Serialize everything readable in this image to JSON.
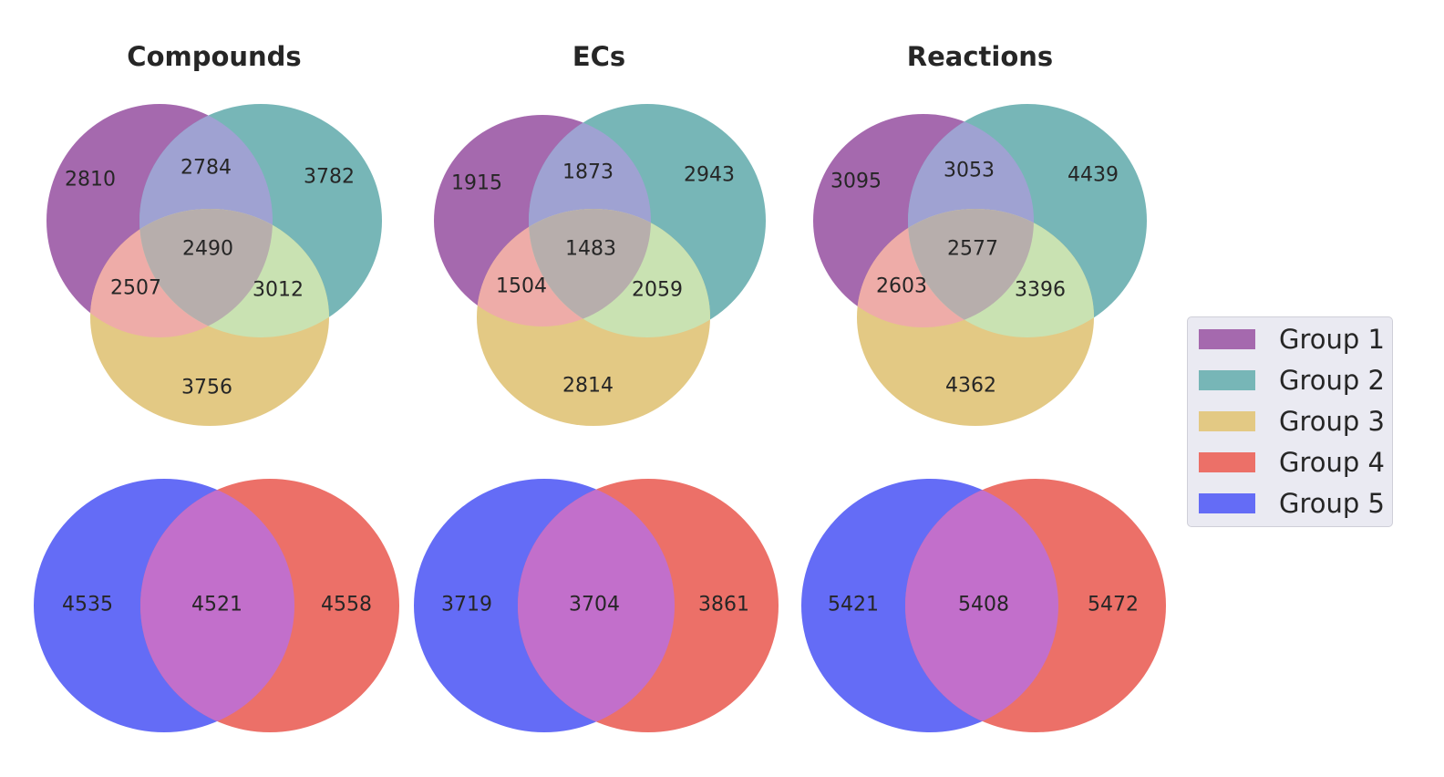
{
  "chart_data": [
    {
      "type": "venn3",
      "title": "Compounds",
      "sets": [
        "Group 1",
        "Group 2",
        "Group 3"
      ],
      "regions": {
        "100": 2810,
        "010": 3782,
        "001": 3756,
        "110": 2784,
        "101": 2507,
        "011": 3012,
        "111": 2490
      }
    },
    {
      "type": "venn3",
      "title": "ECs",
      "sets": [
        "Group 1",
        "Group 2",
        "Group 3"
      ],
      "regions": {
        "100": 1915,
        "010": 2943,
        "001": 2814,
        "110": 1873,
        "101": 1504,
        "011": 2059,
        "111": 1483
      }
    },
    {
      "type": "venn3",
      "title": "Reactions",
      "sets": [
        "Group 1",
        "Group 2",
        "Group 3"
      ],
      "regions": {
        "100": 3095,
        "010": 4439,
        "001": 4362,
        "110": 3053,
        "101": 2603,
        "011": 3396,
        "111": 2577
      }
    },
    {
      "type": "venn2",
      "title": "",
      "sets": [
        "Group 5",
        "Group 4"
      ],
      "regions": {
        "10": 4535,
        "11": 4521,
        "01": 4558
      }
    },
    {
      "type": "venn2",
      "title": "",
      "sets": [
        "Group 5",
        "Group 4"
      ],
      "regions": {
        "10": 3719,
        "11": 3704,
        "01": 3861
      }
    },
    {
      "type": "venn2",
      "title": "",
      "sets": [
        "Group 5",
        "Group 4"
      ],
      "regions": {
        "10": 5421,
        "11": 5408,
        "01": 5472
      }
    }
  ],
  "legend": {
    "position": "center-right",
    "items": [
      {
        "label": "Group 1",
        "color": "#a569ae"
      },
      {
        "label": "Group 2",
        "color": "#77b6b7"
      },
      {
        "label": "Group 3",
        "color": "#e3c984"
      },
      {
        "label": "Group 4",
        "color": "#ec7068"
      },
      {
        "label": "Group 5",
        "color": "#646cf6"
      }
    ]
  },
  "region_colors": {
    "g1g2": "#9fa2d2",
    "g1g3": "#eeaca8",
    "g2g3": "#c9e2b2",
    "g1g2g3": "#b7aeac",
    "g4g5": "#c26fcb"
  }
}
